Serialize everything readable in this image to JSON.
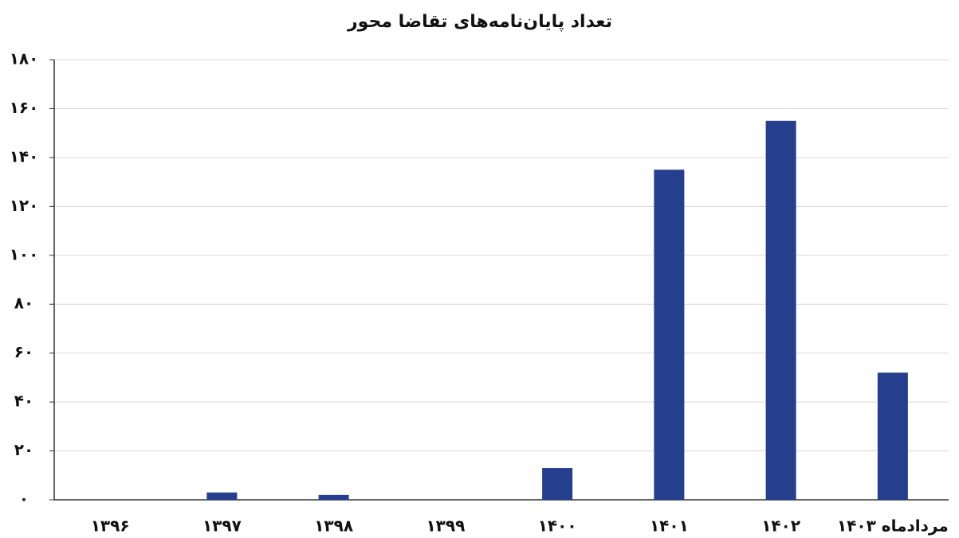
{
  "chart_data": {
    "type": "bar",
    "title": "تعداد پایان‌نامه‌های تقاضا محور",
    "categories": [
      "۱۳۹۶",
      "۱۳۹۷",
      "۱۳۹۸",
      "۱۳۹۹",
      "۱۴۰۰",
      "۱۴۰۱",
      "۱۴۰۲",
      "مردادماه ۱۴۰۳"
    ],
    "values": [
      0,
      3,
      2,
      0,
      13,
      135,
      155,
      52
    ],
    "color": "#253f8e",
    "ylim": [
      0,
      180
    ],
    "yticks": [
      {
        "value": 0,
        "label": "۰"
      },
      {
        "value": 20,
        "label": "۲۰"
      },
      {
        "value": 40,
        "label": "۴۰"
      },
      {
        "value": 60,
        "label": "۶۰"
      },
      {
        "value": 80,
        "label": "۸۰"
      },
      {
        "value": 100,
        "label": "۱۰۰"
      },
      {
        "value": 120,
        "label": "۱۲۰"
      },
      {
        "value": 140,
        "label": "۱۴۰"
      },
      {
        "value": 160,
        "label": "۱۶۰"
      },
      {
        "value": 180,
        "label": "۱۸۰"
      }
    ],
    "grid": true
  }
}
